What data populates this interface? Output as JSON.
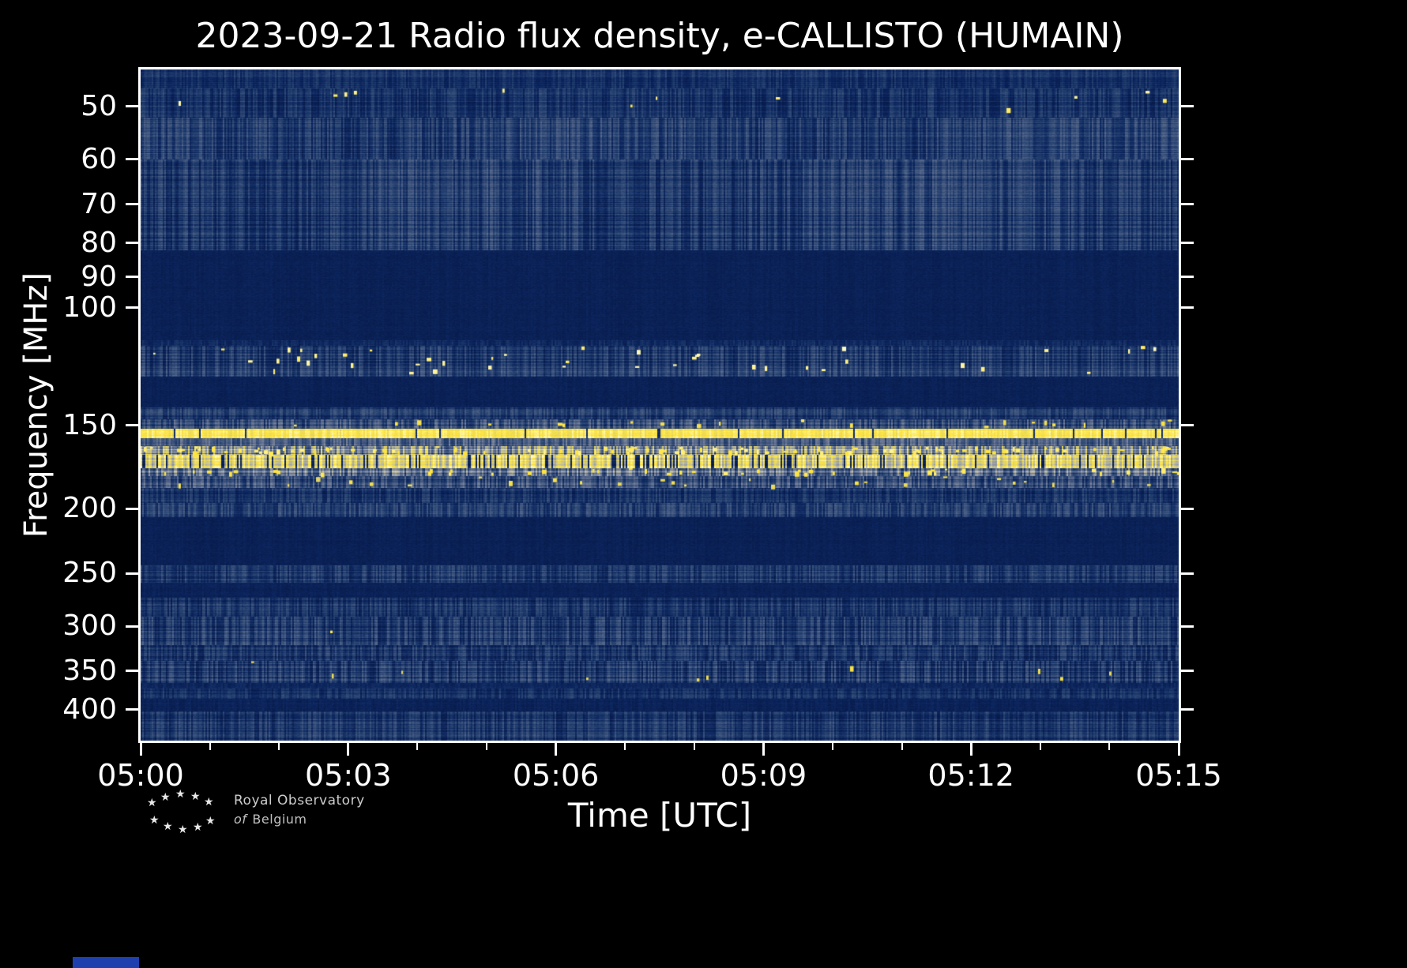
{
  "chart_data": {
    "type": "heatmap",
    "title": "2023-09-21 Radio flux density, e-CALLISTO (HUMAIN)",
    "xlabel": "Time [UTC]",
    "ylabel": "Frequency [MHz]",
    "x_tick_labels": [
      "05:00",
      "05:03",
      "05:06",
      "05:09",
      "05:12",
      "05:15"
    ],
    "x_minor_tick_minutes": [
      1,
      2,
      4,
      5,
      7,
      8,
      10,
      11,
      13,
      14
    ],
    "time_range_minutes": [
      0,
      15
    ],
    "y_tick_labels": [
      50,
      60,
      70,
      80,
      90,
      100,
      150,
      200,
      250,
      300,
      350,
      400
    ],
    "y_scale": "log",
    "freq_range_mhz": [
      44,
      445
    ],
    "background_value": 0.055,
    "colormap_stops": [
      [
        0.0,
        "#071a4a"
      ],
      [
        0.1,
        "#0d2760"
      ],
      [
        0.22,
        "#24406f"
      ],
      [
        0.4,
        "#5a6a8c"
      ],
      [
        0.55,
        "#8e96a6"
      ],
      [
        0.68,
        "#bdbb9e"
      ],
      [
        0.78,
        "#e8d95e"
      ],
      [
        0.88,
        "#ffe53e"
      ],
      [
        1.0,
        "#fffbc2"
      ]
    ],
    "bands": [
      {
        "f1": 44,
        "f2": 47,
        "base": 0.14,
        "amp": 0.08,
        "row": 0.06
      },
      {
        "f1": 47,
        "f2": 52,
        "base": 0.15,
        "amp": 0.1,
        "row": 0.07,
        "sp": 0.012,
        "spv": 0.92
      },
      {
        "f1": 52,
        "f2": 60,
        "base": 0.17,
        "amp": 0.12,
        "row": 0.08,
        "cloud": true
      },
      {
        "f1": 60,
        "f2": 82,
        "base": 0.16,
        "amp": 0.12,
        "row": 0.09,
        "cloud": true
      },
      {
        "f1": 82,
        "f2": 112,
        "base": 0.055,
        "amp": 0.015,
        "row": 0.01
      },
      {
        "f1": 112,
        "f2": 114,
        "base": 0.11,
        "amp": 0.06,
        "row": 0.04
      },
      {
        "f1": 114,
        "f2": 127,
        "base": 0.2,
        "amp": 0.12,
        "row": 0.1,
        "sp": 0.05,
        "spv": 0.95
      },
      {
        "f1": 127,
        "f2": 141,
        "base": 0.055,
        "amp": 0.015,
        "row": 0.01
      },
      {
        "f1": 141,
        "f2": 147,
        "base": 0.18,
        "amp": 0.1,
        "row": 0.08
      },
      {
        "f1": 147,
        "f2": 152,
        "base": 0.26,
        "amp": 0.16,
        "row": 0.1,
        "sp": 0.02,
        "spv": 0.85
      },
      {
        "f1": 152,
        "f2": 157,
        "base": 0.86,
        "amp": 0.08,
        "row": 0.05,
        "drop": 0.03
      },
      {
        "f1": 157,
        "f2": 161,
        "base": 0.3,
        "amp": 0.14,
        "row": 0.1
      },
      {
        "f1": 161,
        "f2": 166,
        "base": 0.5,
        "amp": 0.28,
        "row": 0.18,
        "sp": 0.15,
        "spv": 0.9
      },
      {
        "f1": 166,
        "f2": 174,
        "base": 0.8,
        "amp": 0.18,
        "row": 0.1,
        "drop": 0.13
      },
      {
        "f1": 174,
        "f2": 179,
        "base": 0.42,
        "amp": 0.22,
        "row": 0.14,
        "sp": 0.08,
        "spv": 0.88
      },
      {
        "f1": 179,
        "f2": 186,
        "base": 0.26,
        "amp": 0.16,
        "row": 0.1,
        "sp": 0.03,
        "spv": 0.8
      },
      {
        "f1": 186,
        "f2": 196,
        "base": 0.16,
        "amp": 0.1,
        "row": 0.08
      },
      {
        "f1": 196,
        "f2": 206,
        "base": 0.2,
        "amp": 0.12,
        "row": 0.09
      },
      {
        "f1": 206,
        "f2": 243,
        "base": 0.055,
        "amp": 0.015,
        "row": 0.01
      },
      {
        "f1": 243,
        "f2": 258,
        "base": 0.17,
        "amp": 0.11,
        "row": 0.08
      },
      {
        "f1": 258,
        "f2": 272,
        "base": 0.06,
        "amp": 0.02,
        "row": 0.015
      },
      {
        "f1": 272,
        "f2": 290,
        "base": 0.15,
        "amp": 0.11,
        "row": 0.08
      },
      {
        "f1": 290,
        "f2": 320,
        "base": 0.19,
        "amp": 0.13,
        "row": 0.1,
        "sp": 0.012,
        "spv": 0.85
      },
      {
        "f1": 320,
        "f2": 338,
        "base": 0.16,
        "amp": 0.11,
        "row": 0.08
      },
      {
        "f1": 338,
        "f2": 365,
        "base": 0.19,
        "amp": 0.14,
        "row": 0.1,
        "sp": 0.02,
        "spv": 0.8
      },
      {
        "f1": 365,
        "f2": 372,
        "base": 0.09,
        "amp": 0.04,
        "row": 0.03
      },
      {
        "f1": 372,
        "f2": 385,
        "base": 0.14,
        "amp": 0.09,
        "row": 0.07
      },
      {
        "f1": 385,
        "f2": 402,
        "base": 0.065,
        "amp": 0.03,
        "row": 0.02
      },
      {
        "f1": 402,
        "f2": 445,
        "base": 0.16,
        "amp": 0.11,
        "row": 0.08
      }
    ]
  },
  "logo": {
    "line1": "Royal Observatory",
    "line2_word1": "of",
    "line2_word2": "Belgium"
  }
}
